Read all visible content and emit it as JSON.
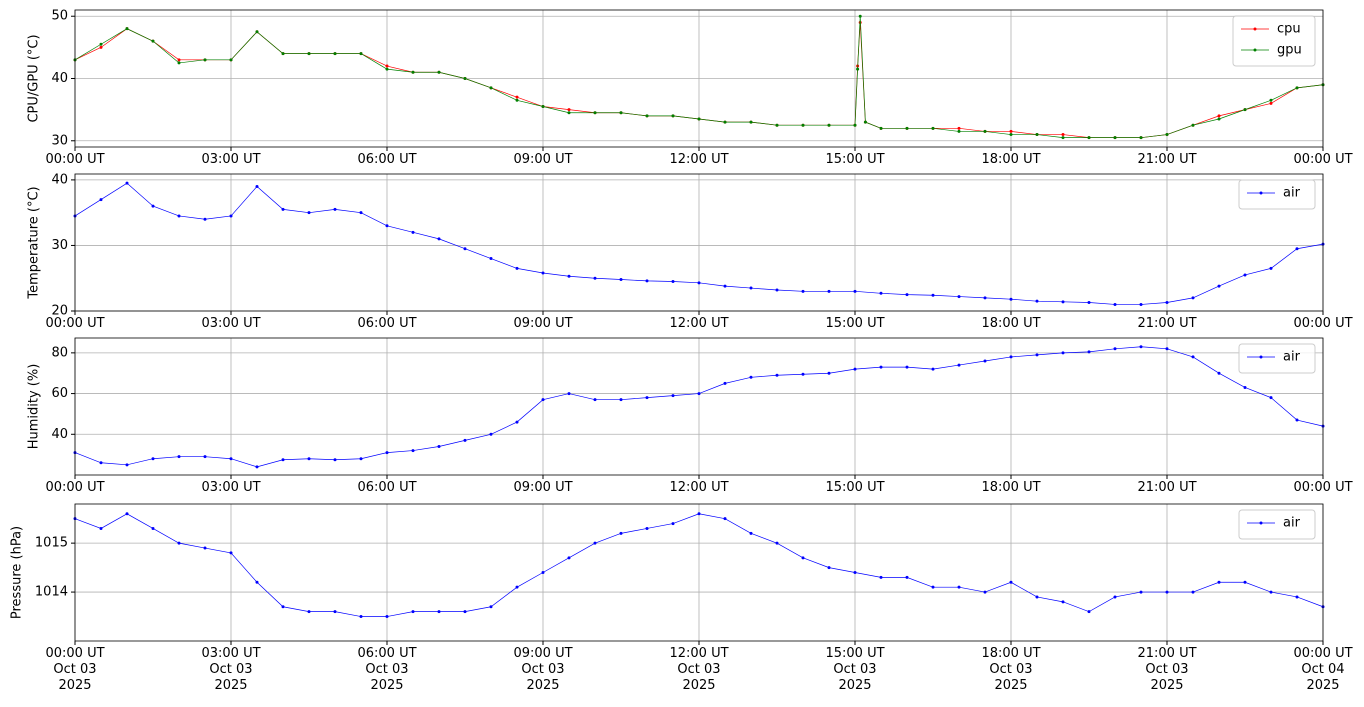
{
  "chart_data": [
    {
      "type": "line",
      "y_label": "CPU/GPU (°C)",
      "grid": true,
      "legend": "upper right",
      "x": [
        0,
        0.5,
        1,
        1.5,
        2,
        2.5,
        3,
        3.5,
        4,
        4.5,
        5,
        5.5,
        6,
        6.5,
        7,
        7.5,
        8,
        8.5,
        9,
        9.5,
        10,
        10.5,
        11,
        11.5,
        12,
        12.5,
        13,
        13.5,
        14,
        14.5,
        15,
        15.05,
        15.1,
        15.2,
        15.5,
        16,
        16.5,
        17,
        17.5,
        18,
        18.5,
        19,
        19.5,
        20,
        20.5,
        21,
        21.5,
        22,
        22.5,
        23,
        23.5,
        24
      ],
      "series": [
        {
          "name": "cpu",
          "color": "#ff0000",
          "values": [
            43,
            45,
            48,
            46,
            43,
            43,
            43,
            47.5,
            44,
            44,
            44,
            44,
            42,
            41,
            41,
            40,
            38.5,
            37,
            35.5,
            35,
            34.5,
            34.5,
            34,
            34,
            33.5,
            33,
            33,
            32.5,
            32.5,
            32.5,
            32.5,
            42,
            49,
            33,
            32,
            32,
            32,
            32,
            31.5,
            31.5,
            31,
            31,
            30.5,
            30.5,
            30.5,
            31,
            32.5,
            34,
            35,
            36,
            38.5,
            39
          ]
        },
        {
          "name": "gpu",
          "color": "#008000",
          "values": [
            43,
            45.5,
            48,
            46,
            42.5,
            43,
            43,
            47.5,
            44,
            44,
            44,
            44,
            41.5,
            41,
            41,
            40,
            38.5,
            36.5,
            35.5,
            34.5,
            34.5,
            34.5,
            34,
            34,
            33.5,
            33,
            33,
            32.5,
            32.5,
            32.5,
            32.5,
            41.5,
            50,
            33,
            32,
            32,
            32,
            31.5,
            31.5,
            31,
            31,
            30.5,
            30.5,
            30.5,
            30.5,
            31,
            32.5,
            33.5,
            35,
            36.5,
            38.5,
            39
          ]
        }
      ],
      "xlim": [
        0,
        24
      ],
      "xticks": [
        {
          "value": 0,
          "label": "00:00 UT"
        },
        {
          "value": 3,
          "label": "03:00 UT"
        },
        {
          "value": 6,
          "label": "06:00 UT"
        },
        {
          "value": 9,
          "label": "09:00 UT"
        },
        {
          "value": 12,
          "label": "12:00 UT"
        },
        {
          "value": 15,
          "label": "15:00 UT"
        },
        {
          "value": 18,
          "label": "18:00 UT"
        },
        {
          "value": 21,
          "label": "21:00 UT"
        },
        {
          "value": 24,
          "label": "00:00 UT"
        }
      ],
      "ylim": [
        29,
        51
      ],
      "yticks": [
        30,
        40,
        50
      ]
    },
    {
      "type": "line",
      "y_label": "Temperature (°C)",
      "grid": true,
      "legend": "upper right",
      "x": [
        0,
        0.5,
        1,
        1.5,
        2,
        2.5,
        3,
        3.5,
        4,
        4.5,
        5,
        5.5,
        6,
        6.5,
        7,
        7.5,
        8,
        8.5,
        9,
        9.5,
        10,
        10.5,
        11,
        11.5,
        12,
        12.5,
        13,
        13.5,
        14,
        14.5,
        15,
        15.5,
        16,
        16.5,
        17,
        17.5,
        18,
        18.5,
        19,
        19.5,
        20,
        20.5,
        21,
        21.5,
        22,
        22.5,
        23,
        23.5,
        24
      ],
      "series": [
        {
          "name": "air",
          "color": "#0000ff",
          "values": [
            34.5,
            37,
            39.5,
            36,
            34.5,
            34,
            34.5,
            39,
            35.5,
            35,
            35.5,
            35,
            33,
            32,
            31,
            29.5,
            28,
            26.5,
            25.8,
            25.3,
            25,
            24.8,
            24.6,
            24.5,
            24.3,
            23.8,
            23.5,
            23.2,
            23,
            23,
            23,
            22.7,
            22.5,
            22.4,
            22.2,
            22,
            21.8,
            21.5,
            21.4,
            21.3,
            21,
            21,
            21.3,
            22,
            23.8,
            25.5,
            26.5,
            29.5,
            30.2
          ]
        }
      ],
      "xlim": [
        0,
        24
      ],
      "xticks": [
        {
          "value": 0,
          "label": "00:00 UT"
        },
        {
          "value": 3,
          "label": "03:00 UT"
        },
        {
          "value": 6,
          "label": "06:00 UT"
        },
        {
          "value": 9,
          "label": "09:00 UT"
        },
        {
          "value": 12,
          "label": "12:00 UT"
        },
        {
          "value": 15,
          "label": "15:00 UT"
        },
        {
          "value": 18,
          "label": "18:00 UT"
        },
        {
          "value": 21,
          "label": "21:00 UT"
        },
        {
          "value": 24,
          "label": "00:00 UT"
        }
      ],
      "ylim": [
        20,
        40.9
      ],
      "yticks": [
        20,
        30,
        40
      ]
    },
    {
      "type": "line",
      "y_label": "Humidity (%)",
      "grid": true,
      "legend": "upper right",
      "x": [
        0,
        0.5,
        1,
        1.5,
        2,
        2.5,
        3,
        3.5,
        4,
        4.5,
        5,
        5.5,
        6,
        6.5,
        7,
        7.5,
        8,
        8.5,
        9,
        9.5,
        10,
        10.5,
        11,
        11.5,
        12,
        12.5,
        13,
        13.5,
        14,
        14.5,
        15,
        15.5,
        16,
        16.5,
        17,
        17.5,
        18,
        18.5,
        19,
        19.5,
        20,
        20.5,
        21,
        21.5,
        22,
        22.5,
        23,
        23.5,
        24
      ],
      "series": [
        {
          "name": "air",
          "color": "#0000ff",
          "values": [
            31,
            26,
            25,
            28,
            29,
            29,
            28,
            24,
            27.5,
            28,
            27.5,
            28,
            31,
            32,
            34,
            37,
            40,
            46,
            57,
            60,
            57,
            57,
            58,
            59,
            60,
            65,
            68,
            69,
            69.5,
            70,
            72,
            73,
            73,
            72,
            74,
            76,
            78,
            79,
            80,
            80.5,
            82,
            83,
            82,
            78,
            70,
            63,
            58,
            47,
            44
          ]
        }
      ],
      "xlim": [
        0,
        24
      ],
      "xticks": [
        {
          "value": 0,
          "label": "00:00 UT"
        },
        {
          "value": 3,
          "label": "03:00 UT"
        },
        {
          "value": 6,
          "label": "06:00 UT"
        },
        {
          "value": 9,
          "label": "09:00 UT"
        },
        {
          "value": 12,
          "label": "12:00 UT"
        },
        {
          "value": 15,
          "label": "15:00 UT"
        },
        {
          "value": 18,
          "label": "18:00 UT"
        },
        {
          "value": 21,
          "label": "21:00 UT"
        },
        {
          "value": 24,
          "label": "00:00 UT"
        }
      ],
      "ylim": [
        20,
        87.3
      ],
      "yticks": [
        40,
        60,
        80
      ]
    },
    {
      "type": "line",
      "y_label": "Pressure (hPa)",
      "grid": true,
      "legend": "upper right",
      "x": [
        0,
        0.5,
        1,
        1.5,
        2,
        2.5,
        3,
        3.5,
        4,
        4.5,
        5,
        5.5,
        6,
        6.5,
        7,
        7.5,
        8,
        8.5,
        9,
        9.5,
        10,
        10.5,
        11,
        11.5,
        12,
        12.5,
        13,
        13.5,
        14,
        14.5,
        15,
        15.5,
        16,
        16.5,
        17,
        17.5,
        18,
        18.5,
        19,
        19.5,
        20,
        20.5,
        21,
        21.5,
        22,
        22.5,
        23,
        23.5,
        24
      ],
      "series": [
        {
          "name": "air",
          "color": "#0000ff",
          "values": [
            1015.5,
            1015.3,
            1015.6,
            1015.3,
            1015,
            1014.9,
            1014.8,
            1014.2,
            1013.7,
            1013.6,
            1013.6,
            1013.5,
            1013.5,
            1013.6,
            1013.6,
            1013.6,
            1013.7,
            1014.1,
            1014.4,
            1014.7,
            1015,
            1015.2,
            1015.3,
            1015.4,
            1015.6,
            1015.5,
            1015.2,
            1015,
            1014.7,
            1014.5,
            1014.4,
            1014.3,
            1014.3,
            1014.1,
            1014.1,
            1014,
            1014.2,
            1013.9,
            1013.8,
            1013.6,
            1013.9,
            1014,
            1014,
            1014,
            1014.2,
            1014.2,
            1014,
            1013.9,
            1013.7
          ]
        }
      ],
      "xlim": [
        0,
        24
      ],
      "xticks": [
        {
          "value": 0,
          "label": "00:00 UT\nOct 03\n2025"
        },
        {
          "value": 3,
          "label": "03:00 UT\nOct 03\n2025"
        },
        {
          "value": 6,
          "label": "06:00 UT\nOct 03\n2025"
        },
        {
          "value": 9,
          "label": "09:00 UT\nOct 03\n2025"
        },
        {
          "value": 12,
          "label": "12:00 UT\nOct 03\n2025"
        },
        {
          "value": 15,
          "label": "15:00 UT\nOct 03\n2025"
        },
        {
          "value": 18,
          "label": "18:00 UT\nOct 03\n2025"
        },
        {
          "value": 21,
          "label": "21:00 UT\nOct 03\n2025"
        },
        {
          "value": 24,
          "label": "00:00 UT\nOct 04\n2025"
        }
      ],
      "ylim": [
        1013,
        1015.8
      ],
      "yticks": [
        1014,
        1015
      ]
    }
  ]
}
